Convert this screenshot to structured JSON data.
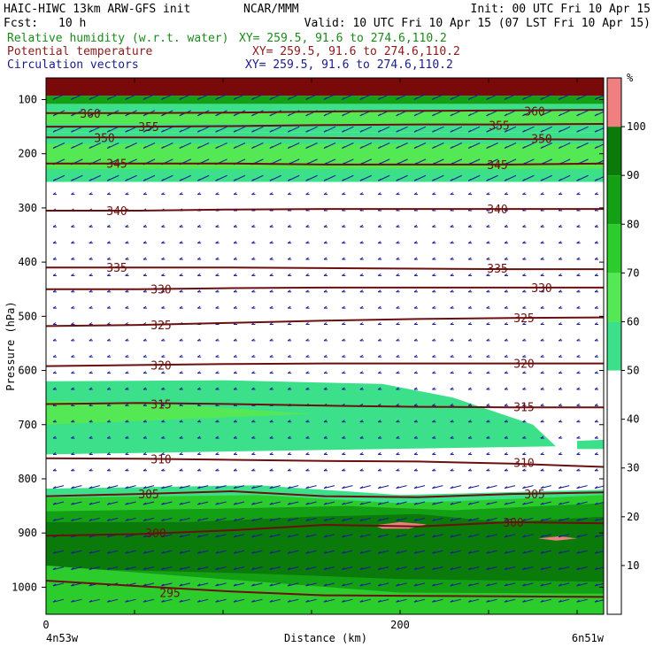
{
  "header": {
    "model": "HAIC-HIWC 13km ARW-GFS init",
    "center": "NCAR/MMM",
    "init": "Init: 00 UTC Fri 10 Apr 15",
    "fcst_label": "Fcst:",
    "fcst_value": "10 h",
    "valid": "Valid: 10 UTC Fri 10 Apr 15 (07 LST Fri 10 Apr 15)"
  },
  "fields": [
    {
      "name": "Relative humidity (w.r.t. water)",
      "xy": "XY= 259.5, 91.6 to 274.6,110.2",
      "color": "#1a8a1a"
    },
    {
      "name": "Potential temperature",
      "xy": "XY= 259.5, 91.6 to 274.6,110.2",
      "color": "#8b1a1a"
    },
    {
      "name": "Circulation vectors",
      "xy": "XY= 259.5, 91.6 to 274.6,110.2",
      "color": "#1a1a8b"
    }
  ],
  "chart_data": {
    "type": "heatmap",
    "xlabel": "Distance (km)",
    "ylabel": "Pressure (hPa)",
    "x_ticks": [
      "0",
      "200"
    ],
    "x_left_label": "4n53w",
    "x_right_label": "6n51w",
    "y_ticks": [
      "100",
      "200",
      "300",
      "400",
      "500",
      "600",
      "700",
      "800",
      "900",
      "1000"
    ],
    "xlim": [
      0,
      315
    ],
    "ylim": [
      1050,
      60
    ],
    "colorbar": {
      "unit": "%",
      "levels": [
        "10",
        "20",
        "30",
        "40",
        "50",
        "60",
        "70",
        "80",
        "90",
        "100"
      ],
      "colors": [
        "#ffffff",
        "#ffffff",
        "#ffffff",
        "#ffffff",
        "#ffffff",
        "#3ce08a",
        "#55e855",
        "#2ccc2c",
        "#14a014",
        "#0a7a0a",
        "#f08080"
      ]
    },
    "rh_bands": [
      {
        "p_top": 60,
        "p_bot": 93,
        "color": "#7a0a0a"
      },
      {
        "p_top": 93,
        "p_bot": 108,
        "color": "#14a014"
      },
      {
        "p_top": 108,
        "p_bot": 122,
        "color": "#3ce08a"
      },
      {
        "p_top": 122,
        "p_bot": 145,
        "color": "#55e855"
      },
      {
        "p_top": 145,
        "p_bot": 160,
        "color": "#3ce08a"
      },
      {
        "p_top": 182,
        "p_bot": 228,
        "color": "#55e855"
      },
      {
        "p_top": 160,
        "p_bot": 252,
        "color": "#3ce08a"
      }
    ],
    "rh_regions": [
      {
        "name": "mid-level moist layer",
        "color": "#3ce08a",
        "points": [
          [
            0,
            620
          ],
          [
            100,
            618
          ],
          [
            190,
            625
          ],
          [
            230,
            650
          ],
          [
            275,
            700
          ],
          [
            288,
            740
          ],
          [
            0,
            755
          ]
        ]
      },
      {
        "name": "mid-level inner",
        "color": "#55e855",
        "points": [
          [
            0,
            655
          ],
          [
            80,
            665
          ],
          [
            150,
            680
          ],
          [
            0,
            700
          ]
        ]
      },
      {
        "name": "right edge patch",
        "color": "#3ce08a",
        "points": [
          [
            300,
            730
          ],
          [
            315,
            728
          ],
          [
            315,
            745
          ],
          [
            300,
            745
          ]
        ]
      },
      {
        "name": "low-level moist top",
        "color": "#3ce08a",
        "points": [
          [
            0,
            818
          ],
          [
            120,
            812
          ],
          [
            200,
            830
          ],
          [
            315,
            820
          ],
          [
            315,
            1050
          ],
          [
            0,
            1050
          ]
        ]
      },
      {
        "name": "low-level green",
        "color": "#2ccc2c",
        "points": [
          [
            0,
            835
          ],
          [
            120,
            830
          ],
          [
            200,
            845
          ],
          [
            280,
            835
          ],
          [
            315,
            830
          ],
          [
            315,
            1050
          ],
          [
            0,
            1050
          ]
        ]
      },
      {
        "name": "low-level dark",
        "color": "#14a014",
        "points": [
          [
            0,
            860
          ],
          [
            100,
            855
          ],
          [
            170,
            850
          ],
          [
            230,
            858
          ],
          [
            315,
            845
          ],
          [
            315,
            1050
          ],
          [
            0,
            1050
          ]
        ]
      },
      {
        "name": "low-level darkest",
        "color": "#0a7a0a",
        "points": [
          [
            0,
            880
          ],
          [
            80,
            880
          ],
          [
            150,
            870
          ],
          [
            210,
            865
          ],
          [
            260,
            880
          ],
          [
            315,
            870
          ],
          [
            315,
            990
          ],
          [
            200,
            985
          ],
          [
            120,
            975
          ],
          [
            0,
            965
          ]
        ]
      },
      {
        "name": "near-surface green",
        "color": "#2ccc2c",
        "points": [
          [
            0,
            960
          ],
          [
            60,
            975
          ],
          [
            120,
            990
          ],
          [
            200,
            1010
          ],
          [
            315,
            1012
          ],
          [
            315,
            1050
          ],
          [
            0,
            1050
          ]
        ]
      },
      {
        "name": "saturated patch 1",
        "color": "#f08080",
        "points": [
          [
            185,
            886
          ],
          [
            200,
            880
          ],
          [
            215,
            884
          ],
          [
            205,
            892
          ],
          [
            190,
            892
          ]
        ]
      },
      {
        "name": "saturated patch 2",
        "color": "#f08080",
        "points": [
          [
            278,
            910
          ],
          [
            290,
            906
          ],
          [
            300,
            910
          ],
          [
            288,
            914
          ]
        ]
      }
    ],
    "theta_contours": [
      {
        "label": "360",
        "p": [
          125,
          125,
          124,
          122,
          121,
          120,
          119
        ],
        "label_pos": [
          [
            25,
            125
          ],
          [
            276,
            121
          ]
        ]
      },
      {
        "label": "355",
        "p": [
          150,
          150,
          149,
          147,
          146,
          146,
          145
        ],
        "label_pos": [
          [
            58,
            150
          ],
          [
            256,
            147
          ]
        ]
      },
      {
        "label": "350",
        "p": [
          170,
          170,
          170,
          171,
          172,
          173,
          174
        ],
        "label_pos": [
          [
            33,
            170
          ],
          [
            280,
            172
          ]
        ]
      },
      {
        "label": "345",
        "p": [
          218,
          218,
          218,
          220,
          220,
          220,
          218
        ],
        "label_pos": [
          [
            40,
            218
          ],
          [
            255,
            220
          ]
        ]
      },
      {
        "label": "340",
        "p": [
          305,
          305,
          303,
          302,
          302,
          302,
          302
        ],
        "label_pos": [
          [
            40,
            305
          ],
          [
            255,
            302
          ]
        ]
      },
      {
        "label": "335",
        "p": [
          410,
          410,
          410,
          411,
          412,
          413,
          413
        ],
        "label_pos": [
          [
            40,
            410
          ],
          [
            255,
            411
          ]
        ]
      },
      {
        "label": "330",
        "p": [
          450,
          450,
          448,
          447,
          447,
          447,
          447
        ],
        "label_pos": [
          [
            65,
            450
          ],
          [
            280,
            447
          ]
        ]
      },
      {
        "label": "325",
        "p": [
          518,
          516,
          512,
          508,
          505,
          503,
          502
        ],
        "label_pos": [
          [
            65,
            516
          ],
          [
            270,
            503
          ]
        ]
      },
      {
        "label": "320",
        "p": [
          592,
          590,
          588,
          587,
          587,
          587,
          587
        ],
        "label_pos": [
          [
            65,
            590
          ],
          [
            270,
            587
          ]
        ]
      },
      {
        "label": "315",
        "p": [
          662,
          660,
          662,
          665,
          667,
          668,
          668
        ],
        "label_pos": [
          [
            65,
            662
          ],
          [
            270,
            667
          ]
        ]
      },
      {
        "label": "310",
        "p": [
          762,
          763,
          765,
          767,
          768,
          772,
          778
        ],
        "label_pos": [
          [
            65,
            763
          ],
          [
            270,
            770
          ]
        ]
      },
      {
        "label": "305",
        "p": [
          832,
          828,
          823,
          832,
          834,
          828,
          825
        ],
        "label_pos": [
          [
            58,
            828
          ],
          [
            276,
            828
          ]
        ]
      },
      {
        "label": "300",
        "p": [
          905,
          902,
          895,
          885,
          888,
          880,
          882
        ],
        "label_pos": [
          [
            62,
            900
          ],
          [
            264,
            880
          ]
        ]
      },
      {
        "label": "295",
        "p": [
          988,
          998,
          1008,
          1015,
          1016,
          1017,
          1018
        ],
        "label_pos": [
          [
            70,
            1010
          ]
        ]
      }
    ]
  }
}
